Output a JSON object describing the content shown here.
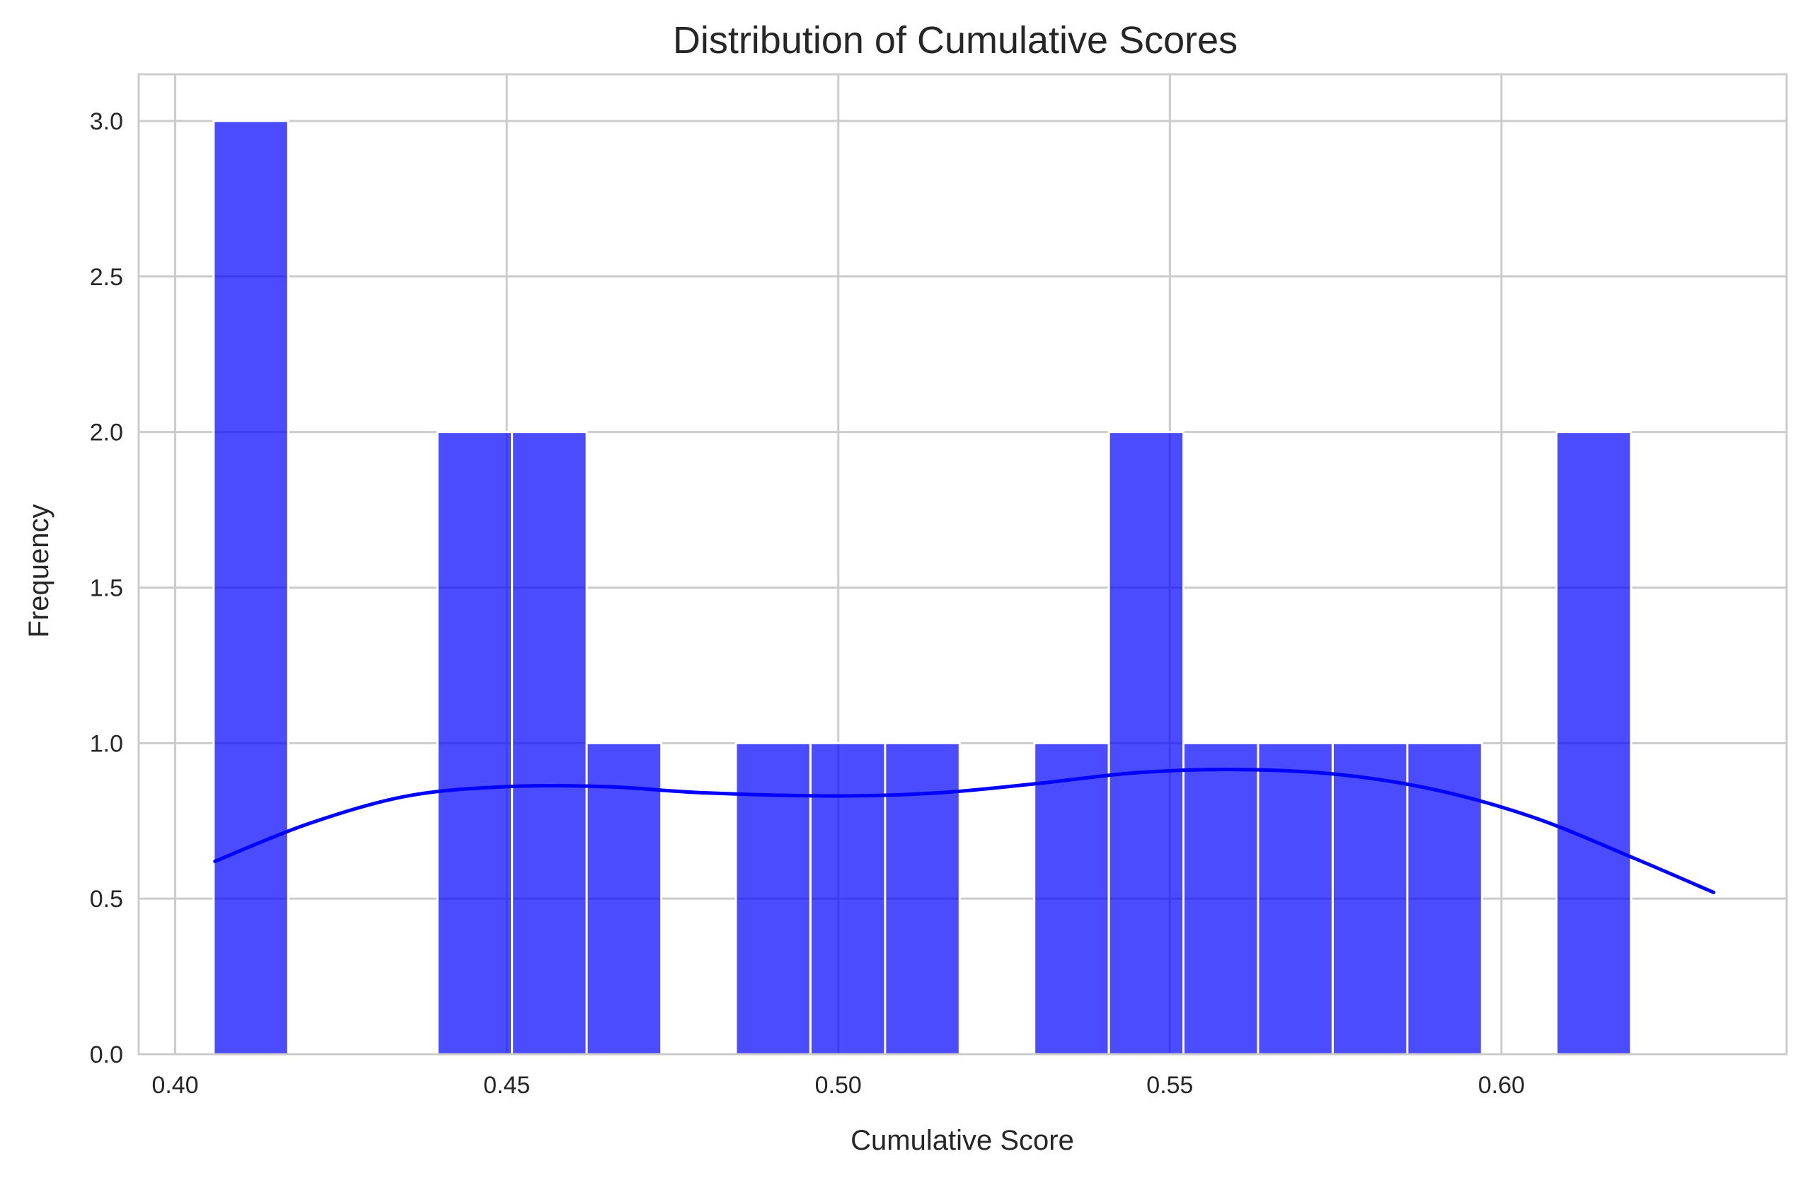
{
  "chart_data": {
    "type": "bar",
    "subtype": "histogram_with_kde",
    "title": "Distribution of Cumulative Scores",
    "xlabel": "Cumulative Score",
    "ylabel": "Frequency",
    "xlim": [
      0.3945,
      0.643
    ],
    "ylim": [
      0,
      3.15
    ],
    "x_ticks": [
      0.4,
      0.45,
      0.5,
      0.55,
      0.6
    ],
    "x_tick_labels": [
      "0.40",
      "0.45",
      "0.50",
      "0.55",
      "0.60"
    ],
    "y_ticks": [
      0.0,
      0.5,
      1.0,
      1.5,
      2.0,
      2.5,
      3.0
    ],
    "y_tick_labels": [
      "0.0",
      "0.5",
      "1.0",
      "1.5",
      "2.0",
      "2.5",
      "3.0"
    ],
    "grid": true,
    "bar_color": "#0000ff",
    "bar_opacity": 0.7,
    "kde_color": "#0000ff",
    "bins": {
      "start": 0.4058,
      "width": 0.01125,
      "counts": [
        3,
        0,
        0,
        2,
        2,
        1,
        0,
        1,
        1,
        1,
        0,
        1,
        2,
        1,
        1,
        1,
        1,
        0,
        2
      ]
    },
    "kde": {
      "x": [
        0.406,
        0.42,
        0.435,
        0.45,
        0.465,
        0.48,
        0.5,
        0.515,
        0.53,
        0.545,
        0.56,
        0.575,
        0.59,
        0.605,
        0.62,
        0.632
      ],
      "y": [
        0.62,
        0.74,
        0.83,
        0.86,
        0.86,
        0.84,
        0.83,
        0.84,
        0.87,
        0.905,
        0.915,
        0.9,
        0.85,
        0.76,
        0.63,
        0.52
      ]
    }
  }
}
